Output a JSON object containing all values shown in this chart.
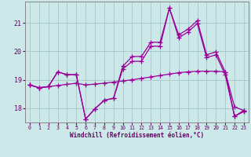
{
  "bg_color": "#cce8e8",
  "grid_color": "#aacccc",
  "line_color": "#990099",
  "ylim": [
    17.5,
    21.75
  ],
  "xlim": [
    -0.5,
    23.5
  ],
  "yticks": [
    18,
    19,
    20,
    21
  ],
  "xticks": [
    0,
    1,
    2,
    3,
    4,
    5,
    6,
    7,
    8,
    9,
    10,
    11,
    12,
    13,
    14,
    15,
    16,
    17,
    18,
    19,
    20,
    21,
    22,
    23
  ],
  "xlabel": "Windchill (Refroidissement éolien,°C)",
  "line1_x": [
    0,
    1,
    2,
    3,
    4,
    5,
    6,
    7,
    8,
    9,
    10,
    11,
    12,
    13,
    14,
    15,
    16,
    17,
    18,
    19,
    20,
    21,
    22,
    23
  ],
  "line1_y": [
    18.82,
    18.72,
    18.76,
    18.8,
    18.84,
    18.88,
    18.82,
    18.85,
    18.88,
    18.92,
    18.96,
    19.0,
    19.05,
    19.1,
    19.15,
    19.2,
    19.25,
    19.28,
    19.3,
    19.3,
    19.3,
    19.28,
    18.05,
    17.92
  ],
  "line2_x": [
    0,
    1,
    2,
    3,
    4,
    5,
    6,
    7,
    8,
    9,
    10,
    11,
    12,
    13,
    14,
    15,
    16,
    17,
    18,
    19,
    20,
    21,
    22,
    23
  ],
  "line2_y": [
    18.82,
    18.72,
    18.76,
    19.28,
    19.18,
    19.18,
    17.62,
    17.98,
    18.28,
    18.35,
    19.48,
    19.82,
    19.82,
    20.32,
    20.32,
    21.52,
    20.58,
    20.78,
    21.08,
    19.88,
    19.98,
    19.28,
    17.72,
    17.92
  ],
  "line3_x": [
    0,
    1,
    2,
    3,
    4,
    5,
    6,
    7,
    8,
    9,
    10,
    11,
    12,
    13,
    14,
    15,
    16,
    17,
    18,
    19,
    20,
    21,
    22,
    23
  ],
  "line3_y": [
    18.82,
    18.72,
    18.76,
    19.28,
    19.18,
    19.18,
    17.62,
    17.98,
    18.28,
    18.35,
    19.38,
    19.65,
    19.65,
    20.18,
    20.18,
    21.52,
    20.48,
    20.68,
    20.98,
    19.78,
    19.88,
    19.18,
    17.72,
    17.88
  ],
  "marker": "+",
  "markersize": 4,
  "linewidth": 0.9
}
